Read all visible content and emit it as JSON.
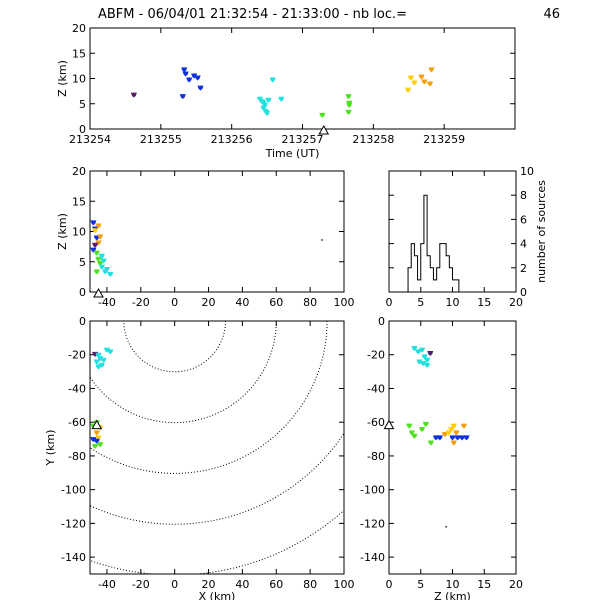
{
  "title": "ABFM - 06/04/01 21:32:54 - 21:33:00 - nb loc.=",
  "count": "46",
  "colors": {
    "purple": "#5a1a6e",
    "blue": "#1030e0",
    "cyan": "#20e0e0",
    "green": "#50e020",
    "yellow": "#ffd000",
    "orange": "#f0a010",
    "station": "#000000"
  },
  "chart_data": [
    {
      "id": "time_height",
      "type": "scatter",
      "xlabel": "Time (UT)",
      "ylabel": "Z (km)",
      "xlim": [
        213254,
        213260
      ],
      "ylim": [
        0,
        20
      ],
      "xticks": [
        213254,
        213255,
        213256,
        213257,
        213258,
        213259
      ],
      "yticks": [
        0,
        5,
        10,
        15,
        20
      ],
      "points": [
        {
          "x": 213254.62,
          "y": 6.8,
          "c": "purple"
        },
        {
          "x": 213255.33,
          "y": 11.8,
          "c": "blue"
        },
        {
          "x": 213255.35,
          "y": 11.0,
          "c": "blue"
        },
        {
          "x": 213255.4,
          "y": 9.8,
          "c": "blue"
        },
        {
          "x": 213255.47,
          "y": 10.6,
          "c": "blue"
        },
        {
          "x": 213255.52,
          "y": 10.2,
          "c": "blue"
        },
        {
          "x": 213255.56,
          "y": 8.2,
          "c": "blue"
        },
        {
          "x": 213255.31,
          "y": 6.5,
          "c": "blue"
        },
        {
          "x": 213256.4,
          "y": 6.0,
          "c": "cyan"
        },
        {
          "x": 213256.43,
          "y": 5.5,
          "c": "cyan"
        },
        {
          "x": 213256.45,
          "y": 5.2,
          "c": "cyan"
        },
        {
          "x": 213256.47,
          "y": 4.8,
          "c": "cyan"
        },
        {
          "x": 213256.45,
          "y": 4.2,
          "c": "cyan"
        },
        {
          "x": 213256.48,
          "y": 3.6,
          "c": "cyan"
        },
        {
          "x": 213256.5,
          "y": 3.2,
          "c": "cyan"
        },
        {
          "x": 213256.52,
          "y": 5.8,
          "c": "cyan"
        },
        {
          "x": 213256.58,
          "y": 9.8,
          "c": "cyan"
        },
        {
          "x": 213256.7,
          "y": 6.0,
          "c": "cyan"
        },
        {
          "x": 213257.28,
          "y": 2.8,
          "c": "green"
        },
        {
          "x": 213257.65,
          "y": 6.5,
          "c": "green"
        },
        {
          "x": 213257.66,
          "y": 5.2,
          "c": "green"
        },
        {
          "x": 213257.66,
          "y": 4.8,
          "c": "green"
        },
        {
          "x": 213257.65,
          "y": 3.4,
          "c": "green"
        },
        {
          "x": 213258.49,
          "y": 7.8,
          "c": "yellow"
        },
        {
          "x": 213258.53,
          "y": 10.2,
          "c": "yellow"
        },
        {
          "x": 213258.58,
          "y": 9.2,
          "c": "yellow"
        },
        {
          "x": 213258.68,
          "y": 10.4,
          "c": "orange"
        },
        {
          "x": 213258.72,
          "y": 9.4,
          "c": "orange"
        },
        {
          "x": 213258.82,
          "y": 11.8,
          "c": "orange"
        },
        {
          "x": 213258.8,
          "y": 9.0,
          "c": "orange"
        }
      ],
      "stations": [
        {
          "x": 213257.3,
          "y": 0
        }
      ]
    },
    {
      "id": "x_height",
      "type": "scatter",
      "xlim": [
        -50,
        100
      ],
      "ylim": [
        0,
        20
      ],
      "xticks": [
        -40,
        -20,
        0,
        20,
        40,
        60,
        80,
        100
      ],
      "yticks": [
        0,
        5,
        10,
        15,
        20
      ],
      "ylabel": "Z (km)",
      "points": [
        {
          "x": -48,
          "y": 11.5,
          "c": "blue"
        },
        {
          "x": -47,
          "y": 10.5,
          "c": "blue"
        },
        {
          "x": -46,
          "y": 9.0,
          "c": "blue"
        },
        {
          "x": -48,
          "y": 7.0,
          "c": "blue"
        },
        {
          "x": -47,
          "y": 10.2,
          "c": "yellow"
        },
        {
          "x": -45,
          "y": 11.0,
          "c": "orange"
        },
        {
          "x": -44,
          "y": 9.2,
          "c": "orange"
        },
        {
          "x": -45,
          "y": 8.2,
          "c": "orange"
        },
        {
          "x": -47,
          "y": 7.8,
          "c": "purple"
        },
        {
          "x": -46,
          "y": 6.5,
          "c": "green"
        },
        {
          "x": -45,
          "y": 5.5,
          "c": "green"
        },
        {
          "x": -44,
          "y": 4.8,
          "c": "green"
        },
        {
          "x": -46,
          "y": 3.4,
          "c": "green"
        },
        {
          "x": -43,
          "y": 6.0,
          "c": "cyan"
        },
        {
          "x": -42,
          "y": 5.2,
          "c": "cyan"
        },
        {
          "x": -43,
          "y": 4.2,
          "c": "cyan"
        },
        {
          "x": -40,
          "y": 3.8,
          "c": "cyan"
        },
        {
          "x": -38,
          "y": 3.0,
          "c": "cyan"
        },
        {
          "x": -41,
          "y": 3.4,
          "c": "cyan"
        }
      ],
      "stations": [
        {
          "x": -45,
          "y": 0
        }
      ],
      "extra_dots": [
        {
          "x": 87,
          "y": 8.6
        }
      ]
    },
    {
      "id": "height_histogram",
      "type": "bar",
      "ylabel": "number of sources",
      "xlim": [
        0,
        20
      ],
      "ylim": [
        0,
        10
      ],
      "xticks": [
        0,
        5,
        10,
        15,
        20
      ],
      "yticks": [
        0,
        2,
        4,
        6,
        8,
        10
      ],
      "bin_width": 0.5,
      "bin_start": 0,
      "values": [
        0,
        0,
        0,
        0,
        0,
        0,
        2,
        4,
        3,
        1,
        4,
        8,
        3,
        2,
        1,
        2,
        4,
        4,
        3,
        2,
        1,
        1,
        0,
        0,
        0,
        0,
        0,
        0,
        0,
        0,
        0,
        0,
        0,
        0,
        0,
        0,
        0,
        0,
        0,
        0
      ]
    },
    {
      "id": "plan_view",
      "type": "scatter",
      "xlabel": "X (km)",
      "ylabel": "Y (km)",
      "xlim": [
        -50,
        100
      ],
      "ylim": [
        -150,
        0
      ],
      "xticks": [
        -40,
        -20,
        0,
        20,
        40,
        60,
        80,
        100
      ],
      "yticks": [
        0,
        -20,
        -40,
        -60,
        -80,
        -100,
        -120,
        -140
      ],
      "range_rings_center": [
        0,
        0
      ],
      "range_rings": [
        30,
        60,
        90,
        120,
        150
      ],
      "points": [
        {
          "x": -47,
          "y": -19.5,
          "c": "purple"
        },
        {
          "x": -45,
          "y": -20,
          "c": "cyan"
        },
        {
          "x": -40,
          "y": -17,
          "c": "cyan"
        },
        {
          "x": -38,
          "y": -18,
          "c": "cyan"
        },
        {
          "x": -44,
          "y": -22,
          "c": "cyan"
        },
        {
          "x": -46,
          "y": -24,
          "c": "cyan"
        },
        {
          "x": -43,
          "y": -26,
          "c": "cyan"
        },
        {
          "x": -45,
          "y": -27,
          "c": "cyan"
        },
        {
          "x": -42,
          "y": -23,
          "c": "cyan"
        },
        {
          "x": -48,
          "y": -62,
          "c": "green"
        },
        {
          "x": -46,
          "y": -60,
          "c": "green"
        },
        {
          "x": -44,
          "y": -63,
          "c": "yellow"
        },
        {
          "x": -46,
          "y": -66,
          "c": "orange"
        },
        {
          "x": -45,
          "y": -69,
          "c": "yellow"
        },
        {
          "x": -48,
          "y": -70,
          "c": "blue"
        },
        {
          "x": -46,
          "y": -71,
          "c": "blue"
        },
        {
          "x": -44,
          "y": -73,
          "c": "green"
        },
        {
          "x": -47,
          "y": -74,
          "c": "green"
        }
      ],
      "stations": [
        {
          "x": -46,
          "y": -62
        }
      ]
    },
    {
      "id": "height_y",
      "type": "scatter",
      "xlabel": "Z (km)",
      "xlim": [
        0,
        20
      ],
      "ylim": [
        -150,
        0
      ],
      "xticks": [
        0,
        5,
        10,
        15,
        20
      ],
      "yticks": [
        0,
        -20,
        -40,
        -60,
        -80,
        -100,
        -120,
        -140
      ],
      "points": [
        {
          "x": 4.0,
          "y": -16,
          "c": "cyan"
        },
        {
          "x": 4.6,
          "y": -18,
          "c": "cyan"
        },
        {
          "x": 5.2,
          "y": -17,
          "c": "cyan"
        },
        {
          "x": 5.6,
          "y": -21,
          "c": "cyan"
        },
        {
          "x": 6.0,
          "y": -23,
          "c": "cyan"
        },
        {
          "x": 5.4,
          "y": -25,
          "c": "cyan"
        },
        {
          "x": 4.8,
          "y": -24,
          "c": "cyan"
        },
        {
          "x": 6.0,
          "y": -26,
          "c": "cyan"
        },
        {
          "x": 6.5,
          "y": -19,
          "c": "purple"
        },
        {
          "x": 3.2,
          "y": -62,
          "c": "green"
        },
        {
          "x": 3.6,
          "y": -66,
          "c": "green"
        },
        {
          "x": 4.0,
          "y": -68,
          "c": "green"
        },
        {
          "x": 5.2,
          "y": -64,
          "c": "green"
        },
        {
          "x": 5.8,
          "y": -61,
          "c": "green"
        },
        {
          "x": 6.6,
          "y": -72,
          "c": "green"
        },
        {
          "x": 7.4,
          "y": -69,
          "c": "blue"
        },
        {
          "x": 8.0,
          "y": -69,
          "c": "blue"
        },
        {
          "x": 8.8,
          "y": -67,
          "c": "orange"
        },
        {
          "x": 9.4,
          "y": -66,
          "c": "yellow"
        },
        {
          "x": 9.8,
          "y": -64,
          "c": "yellow"
        },
        {
          "x": 10.2,
          "y": -62,
          "c": "yellow"
        },
        {
          "x": 10.6,
          "y": -66,
          "c": "orange"
        },
        {
          "x": 10.0,
          "y": -69,
          "c": "blue"
        },
        {
          "x": 10.8,
          "y": -69,
          "c": "blue"
        },
        {
          "x": 11.5,
          "y": -69,
          "c": "blue"
        },
        {
          "x": 11.8,
          "y": -62,
          "c": "orange"
        },
        {
          "x": 12.2,
          "y": -69,
          "c": "blue"
        },
        {
          "x": 10.2,
          "y": -72,
          "c": "orange"
        }
      ],
      "stations": [
        {
          "x": 0,
          "y": -62
        }
      ],
      "extra_dots": [
        {
          "x": 9,
          "y": -122
        }
      ]
    }
  ]
}
